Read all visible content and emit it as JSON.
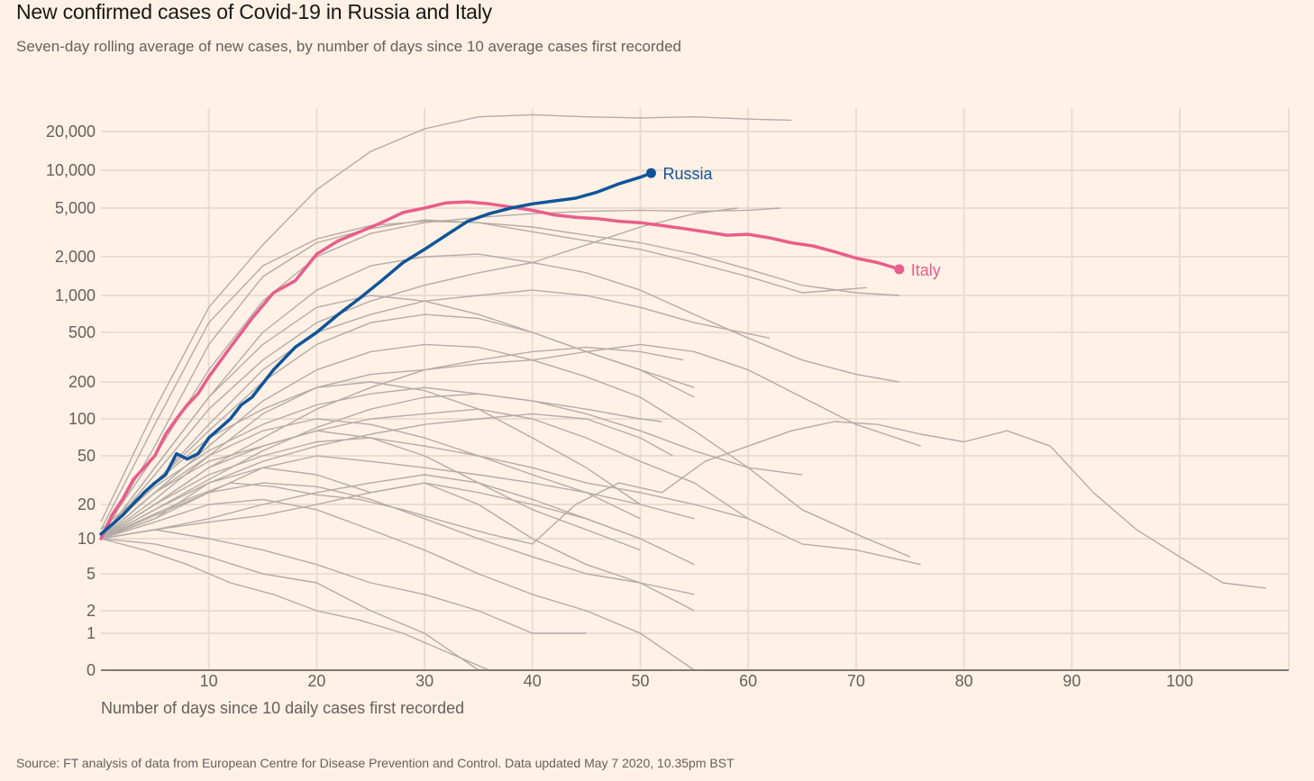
{
  "header": {
    "title": "New confirmed cases of Covid-19 in Russia and Italy",
    "subtitle": "Seven-day rolling average of new cases, by number of days since 10 average cases first recorded"
  },
  "footer": {
    "source": "Source: FT analysis of data from European Centre for Disease Prevention and Control. Data updated May 7 2020, 10.35pm BST"
  },
  "chart_data": {
    "type": "line",
    "title": "New confirmed cases of Covid-19 in Russia and Italy",
    "subtitle": "Seven-day rolling average of new cases, by number of days since 10 average cases first recorded",
    "xlabel": "Number of days since 10 daily cases first recorded",
    "ylabel": "",
    "yscale": "log",
    "xlim": [
      0,
      110
    ],
    "ylim": [
      0,
      30000
    ],
    "grid": true,
    "x_ticks": [
      10,
      20,
      30,
      40,
      50,
      60,
      70,
      80,
      90,
      100
    ],
    "x_tick_labels": [
      "10",
      "20",
      "30",
      "40",
      "50",
      "60",
      "70",
      "80",
      "90",
      "100"
    ],
    "y_ticks": [
      0,
      1,
      2,
      5,
      10,
      20,
      50,
      100,
      200,
      500,
      1000,
      2000,
      5000,
      10000,
      20000
    ],
    "y_tick_labels": [
      "0",
      "1",
      "2",
      "5",
      "10",
      "20",
      "50",
      "100",
      "200",
      "500",
      "1,000",
      "2,000",
      "5,000",
      "10,000",
      "20,000"
    ],
    "highlight_series": [
      {
        "name": "Russia",
        "color": "#0f5499",
        "x": [
          0,
          2,
          4,
          5,
          6,
          7,
          8,
          9,
          10,
          12,
          13,
          14,
          16,
          18,
          20,
          22,
          24,
          26,
          28,
          30,
          32,
          34,
          36,
          38,
          40,
          42,
          44,
          46,
          48,
          50,
          51
        ],
        "y": [
          11,
          16,
          25,
          30,
          35,
          52,
          47,
          52,
          70,
          100,
          130,
          150,
          250,
          380,
          500,
          700,
          950,
          1300,
          1800,
          2300,
          3000,
          3900,
          4500,
          5000,
          5400,
          5700,
          6000,
          6700,
          7800,
          8800,
          9500
        ]
      },
      {
        "name": "Italy",
        "color": "#e95d8c",
        "x": [
          0,
          1,
          2,
          3,
          4,
          5,
          6,
          7,
          8,
          9,
          10,
          12,
          14,
          16,
          18,
          20,
          22,
          24,
          26,
          28,
          30,
          32,
          34,
          36,
          38,
          40,
          42,
          44,
          46,
          48,
          50,
          52,
          54,
          56,
          58,
          60,
          62,
          64,
          66,
          68,
          70,
          72,
          74
        ],
        "y": [
          10,
          16,
          22,
          32,
          40,
          50,
          75,
          100,
          130,
          160,
          220,
          380,
          650,
          1050,
          1300,
          2100,
          2700,
          3200,
          3800,
          4600,
          5000,
          5500,
          5600,
          5400,
          5100,
          4800,
          4400,
          4200,
          4100,
          3900,
          3800,
          3600,
          3400,
          3200,
          3000,
          3050,
          2850,
          2600,
          2450,
          2200,
          1950,
          1800,
          1600
        ]
      }
    ],
    "other_countries": {
      "color": "#b4aca6",
      "series": [
        {
          "x": [
            0,
            5,
            10,
            15,
            20,
            25,
            30,
            35,
            40,
            45,
            50,
            55,
            60,
            64
          ],
          "y": [
            14,
            120,
            800,
            2500,
            7000,
            14000,
            21000,
            26000,
            27000,
            26000,
            25500,
            26000,
            25000,
            24500
          ]
        },
        {
          "x": [
            0,
            5,
            10,
            15,
            20,
            25,
            30,
            35,
            40,
            45,
            50,
            55,
            60,
            65,
            70,
            74
          ],
          "y": [
            12,
            90,
            600,
            1700,
            2800,
            3600,
            3900,
            3800,
            3500,
            3000,
            2600,
            2100,
            1600,
            1200,
            1050,
            1000
          ]
        },
        {
          "x": [
            0,
            5,
            10,
            15,
            20,
            25,
            30,
            35,
            40,
            45,
            50,
            55,
            60,
            65,
            71
          ],
          "y": [
            10,
            60,
            400,
            1400,
            2600,
            3400,
            4000,
            3800,
            3200,
            2700,
            2300,
            1800,
            1400,
            1050,
            1150
          ]
        },
        {
          "x": [
            0,
            5,
            10,
            15,
            20,
            25,
            30,
            35,
            40,
            45,
            50,
            55,
            60,
            63
          ],
          "y": [
            11,
            50,
            250,
            900,
            2000,
            3100,
            3800,
            4200,
            4500,
            4700,
            4800,
            4700,
            4800,
            5000
          ]
        },
        {
          "x": [
            0,
            5,
            10,
            15,
            20,
            25,
            30,
            35,
            40,
            45,
            50,
            55,
            60,
            65,
            70,
            74
          ],
          "y": [
            10,
            40,
            150,
            500,
            1100,
            1700,
            2000,
            2100,
            1800,
            1500,
            1100,
            700,
            450,
            300,
            230,
            200
          ]
        },
        {
          "x": [
            0,
            5,
            10,
            15,
            20,
            25,
            30,
            35,
            40,
            45,
            50,
            55,
            59
          ],
          "y": [
            10,
            35,
            120,
            300,
            600,
            900,
            1200,
            1500,
            1800,
            2500,
            3500,
            4500,
            5000
          ]
        },
        {
          "x": [
            0,
            5,
            10,
            15,
            20,
            25,
            30,
            35,
            40,
            45,
            50,
            55,
            62
          ],
          "y": [
            11,
            30,
            90,
            250,
            500,
            700,
            900,
            1000,
            1100,
            1000,
            800,
            600,
            450
          ]
        },
        {
          "x": [
            0,
            4,
            8,
            12,
            16,
            20,
            24,
            28,
            32,
            36,
            40,
            44,
            48,
            52,
            56,
            60,
            64,
            68,
            72,
            76,
            80,
            84,
            88,
            92,
            96,
            100,
            104,
            108
          ],
          "y": [
            10,
            15,
            22,
            30,
            28,
            24,
            22,
            18,
            14,
            11,
            9,
            20,
            30,
            25,
            45,
            60,
            80,
            95,
            90,
            75,
            65,
            80,
            60,
            25,
            12,
            7,
            4,
            3.5
          ]
        },
        {
          "x": [
            0,
            5,
            10,
            15,
            20,
            25,
            30,
            35,
            40,
            45,
            50,
            55,
            60,
            65,
            70,
            75
          ],
          "y": [
            10,
            25,
            60,
            140,
            250,
            350,
            400,
            380,
            300,
            220,
            150,
            80,
            40,
            18,
            11,
            7
          ]
        },
        {
          "x": [
            0,
            5,
            10,
            15,
            20,
            25,
            30,
            35,
            40,
            45,
            50,
            55,
            60,
            65,
            70,
            76
          ],
          "y": [
            10,
            22,
            50,
            110,
            180,
            230,
            250,
            280,
            300,
            350,
            400,
            350,
            250,
            150,
            90,
            60
          ]
        },
        {
          "x": [
            0,
            5,
            10,
            15,
            20,
            25,
            30,
            35,
            40,
            45,
            50,
            54
          ],
          "y": [
            10,
            20,
            40,
            70,
            120,
            180,
            250,
            300,
            350,
            380,
            350,
            300
          ]
        },
        {
          "x": [
            0,
            5,
            10,
            15,
            20,
            25,
            30,
            35,
            40,
            45,
            50,
            53
          ],
          "y": [
            10,
            18,
            30,
            45,
            60,
            75,
            90,
            100,
            110,
            100,
            70,
            50
          ]
        },
        {
          "x": [
            0,
            5,
            10,
            15,
            20,
            25,
            30,
            35,
            40,
            45,
            50
          ],
          "y": [
            10,
            25,
            45,
            60,
            80,
            70,
            50,
            30,
            18,
            12,
            8
          ]
        },
        {
          "x": [
            0,
            5,
            10,
            15,
            20,
            25,
            30,
            35,
            40,
            45,
            50,
            55
          ],
          "y": [
            10,
            15,
            25,
            40,
            50,
            45,
            40,
            35,
            30,
            25,
            20,
            15
          ]
        },
        {
          "x": [
            0,
            5,
            10,
            15,
            20,
            25,
            30,
            35,
            40,
            45,
            50,
            55
          ],
          "y": [
            10,
            12,
            14,
            16,
            20,
            25,
            30,
            25,
            20,
            15,
            10,
            6
          ]
        },
        {
          "x": [
            0,
            4,
            8,
            12,
            16,
            20,
            24,
            28,
            32,
            36,
            40,
            44,
            48
          ],
          "y": [
            10,
            8,
            6,
            4,
            3,
            2,
            1.5,
            1,
            0.5,
            0,
            0,
            0,
            0
          ]
        },
        {
          "x": [
            0,
            5,
            10,
            15,
            20,
            25,
            30,
            35,
            40
          ],
          "y": [
            10,
            9,
            7,
            5,
            4,
            2,
            1,
            0,
            0
          ]
        },
        {
          "x": [
            0,
            5,
            10,
            15,
            20,
            25,
            30,
            35,
            40,
            45,
            50,
            55
          ],
          "y": [
            10,
            14,
            20,
            22,
            18,
            12,
            8,
            5,
            3,
            2,
            1,
            0
          ]
        },
        {
          "x": [
            0,
            5,
            10,
            15,
            20,
            25,
            30,
            35,
            40,
            45,
            50
          ],
          "y": [
            12,
            30,
            70,
            120,
            180,
            200,
            170,
            120,
            70,
            40,
            20
          ]
        },
        {
          "x": [
            0,
            5,
            10,
            15,
            20,
            25,
            30,
            35,
            40,
            45,
            50,
            55,
            60
          ],
          "y": [
            10,
            20,
            35,
            50,
            65,
            70,
            60,
            50,
            40,
            30,
            25,
            20,
            15
          ]
        },
        {
          "x": [
            0,
            5,
            10,
            15,
            20,
            25,
            30,
            35,
            40,
            45,
            50,
            52
          ],
          "y": [
            11,
            28,
            55,
            90,
            130,
            160,
            180,
            160,
            140,
            120,
            100,
            95
          ]
        },
        {
          "x": [
            0,
            5,
            10,
            15,
            20,
            25,
            30,
            35,
            40,
            45,
            50,
            55
          ],
          "y": [
            10,
            16,
            25,
            30,
            28,
            22,
            15,
            10,
            7,
            5,
            4,
            3
          ]
        },
        {
          "x": [
            0,
            5,
            10,
            15,
            20,
            25,
            30,
            35,
            40,
            45,
            50,
            55
          ],
          "y": [
            10,
            30,
            80,
            200,
            400,
            600,
            700,
            650,
            500,
            350,
            250,
            180
          ]
        },
        {
          "x": [
            0,
            5,
            10,
            15,
            20,
            25,
            30,
            35,
            40,
            45,
            50
          ],
          "y": [
            10,
            12,
            15,
            20,
            25,
            30,
            35,
            30,
            22,
            15,
            10
          ]
        },
        {
          "x": [
            0,
            5,
            10,
            15,
            20,
            25,
            30,
            35,
            40,
            45,
            50,
            55,
            60,
            65,
            70,
            76
          ],
          "y": [
            10,
            20,
            40,
            60,
            80,
            100,
            110,
            120,
            100,
            70,
            45,
            30,
            15,
            9,
            8,
            6
          ]
        },
        {
          "x": [
            0,
            5,
            10,
            15,
            20,
            25,
            30,
            35,
            40,
            45,
            50,
            55,
            60,
            65
          ],
          "y": [
            10,
            18,
            32,
            55,
            85,
            120,
            150,
            160,
            140,
            110,
            80,
            55,
            40,
            35
          ]
        },
        {
          "x": [
            0,
            5,
            10,
            15,
            20,
            25,
            30,
            35,
            40,
            45
          ],
          "y": [
            10,
            12,
            10,
            8,
            6,
            4,
            3,
            2,
            1,
            1
          ]
        },
        {
          "x": [
            0,
            5,
            10,
            15,
            20,
            25,
            30,
            35,
            40,
            45,
            50
          ],
          "y": [
            10,
            25,
            50,
            80,
            100,
            90,
            70,
            50,
            35,
            25,
            15
          ]
        },
        {
          "x": [
            0,
            5,
            10,
            15,
            20,
            25,
            30,
            35,
            40,
            45,
            50,
            55
          ],
          "y": [
            10,
            15,
            30,
            40,
            35,
            25,
            30,
            20,
            10,
            6,
            4,
            2
          ]
        },
        {
          "x": [
            0,
            5,
            10,
            15,
            20,
            25,
            30,
            35,
            40,
            45,
            50,
            55
          ],
          "y": [
            10,
            40,
            150,
            400,
            800,
            1000,
            900,
            700,
            500,
            350,
            250,
            150
          ]
        }
      ]
    },
    "annotations": [
      {
        "text": "Russia",
        "x": 51,
        "y": 9500,
        "color": "#0f5499"
      },
      {
        "text": "Italy",
        "x": 74,
        "y": 1600,
        "color": "#e95d8c"
      }
    ]
  }
}
